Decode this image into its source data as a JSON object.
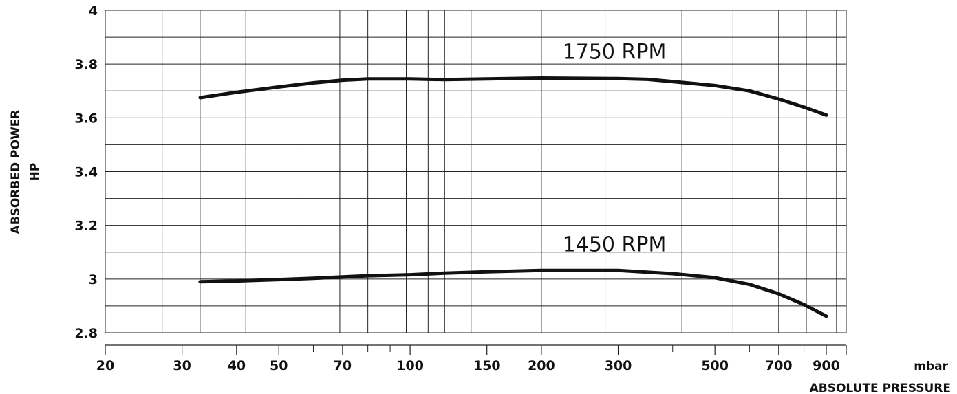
{
  "chart_data": {
    "type": "line",
    "title": "",
    "xlabel": "ABSOLUTE PRESSURE",
    "xunit": "mbar",
    "ylabel": "ABSORBED POWER",
    "yunit": "HP",
    "xscale": "log",
    "xlim": [
      20,
      1000
    ],
    "ylim": [
      2.8,
      4
    ],
    "grid": true,
    "x_tick_labels": [
      "20",
      "30",
      "40",
      "50",
      "70",
      "100",
      "150",
      "200",
      "300",
      "500",
      "700",
      "900"
    ],
    "x_ticks": [
      20,
      30,
      40,
      50,
      70,
      100,
      150,
      200,
      300,
      500,
      700,
      900
    ],
    "x_minor_ticks": [
      60,
      80,
      90,
      400,
      600,
      800
    ],
    "x_gridlines": [
      20,
      27,
      33,
      42,
      55,
      69,
      80,
      98,
      110,
      120,
      138,
      200,
      280,
      420,
      550,
      700,
      810,
      950
    ],
    "y_tick_labels": [
      "4",
      "3.8",
      "3.6",
      "3.4",
      "3.2",
      "3",
      "2.8"
    ],
    "y_ticks": [
      4,
      3.8,
      3.6,
      3.4,
      3.2,
      3,
      2.8
    ],
    "y_gridlines": [
      2.8,
      2.9,
      3.0,
      3.1,
      3.2,
      3.3,
      3.4,
      3.5,
      3.6,
      3.7,
      3.8,
      3.9,
      4.0
    ],
    "series": [
      {
        "name": "1750 RPM",
        "x": [
          33,
          40,
          50,
          60,
          70,
          80,
          100,
          120,
          150,
          200,
          300,
          350,
          400,
          500,
          600,
          700,
          800,
          900
        ],
        "y": [
          3.675,
          3.695,
          3.715,
          3.73,
          3.74,
          3.745,
          3.745,
          3.742,
          3.745,
          3.748,
          3.746,
          3.743,
          3.735,
          3.72,
          3.7,
          3.67,
          3.64,
          3.61
        ]
      },
      {
        "name": "1450 RPM",
        "x": [
          33,
          40,
          50,
          60,
          70,
          80,
          100,
          120,
          150,
          200,
          300,
          400,
          500,
          600,
          700,
          800,
          900
        ],
        "y": [
          2.99,
          2.993,
          2.998,
          3.003,
          3.008,
          3.012,
          3.016,
          3.022,
          3.027,
          3.032,
          3.032,
          3.02,
          3.005,
          2.98,
          2.945,
          2.905,
          2.862
        ]
      }
    ]
  }
}
